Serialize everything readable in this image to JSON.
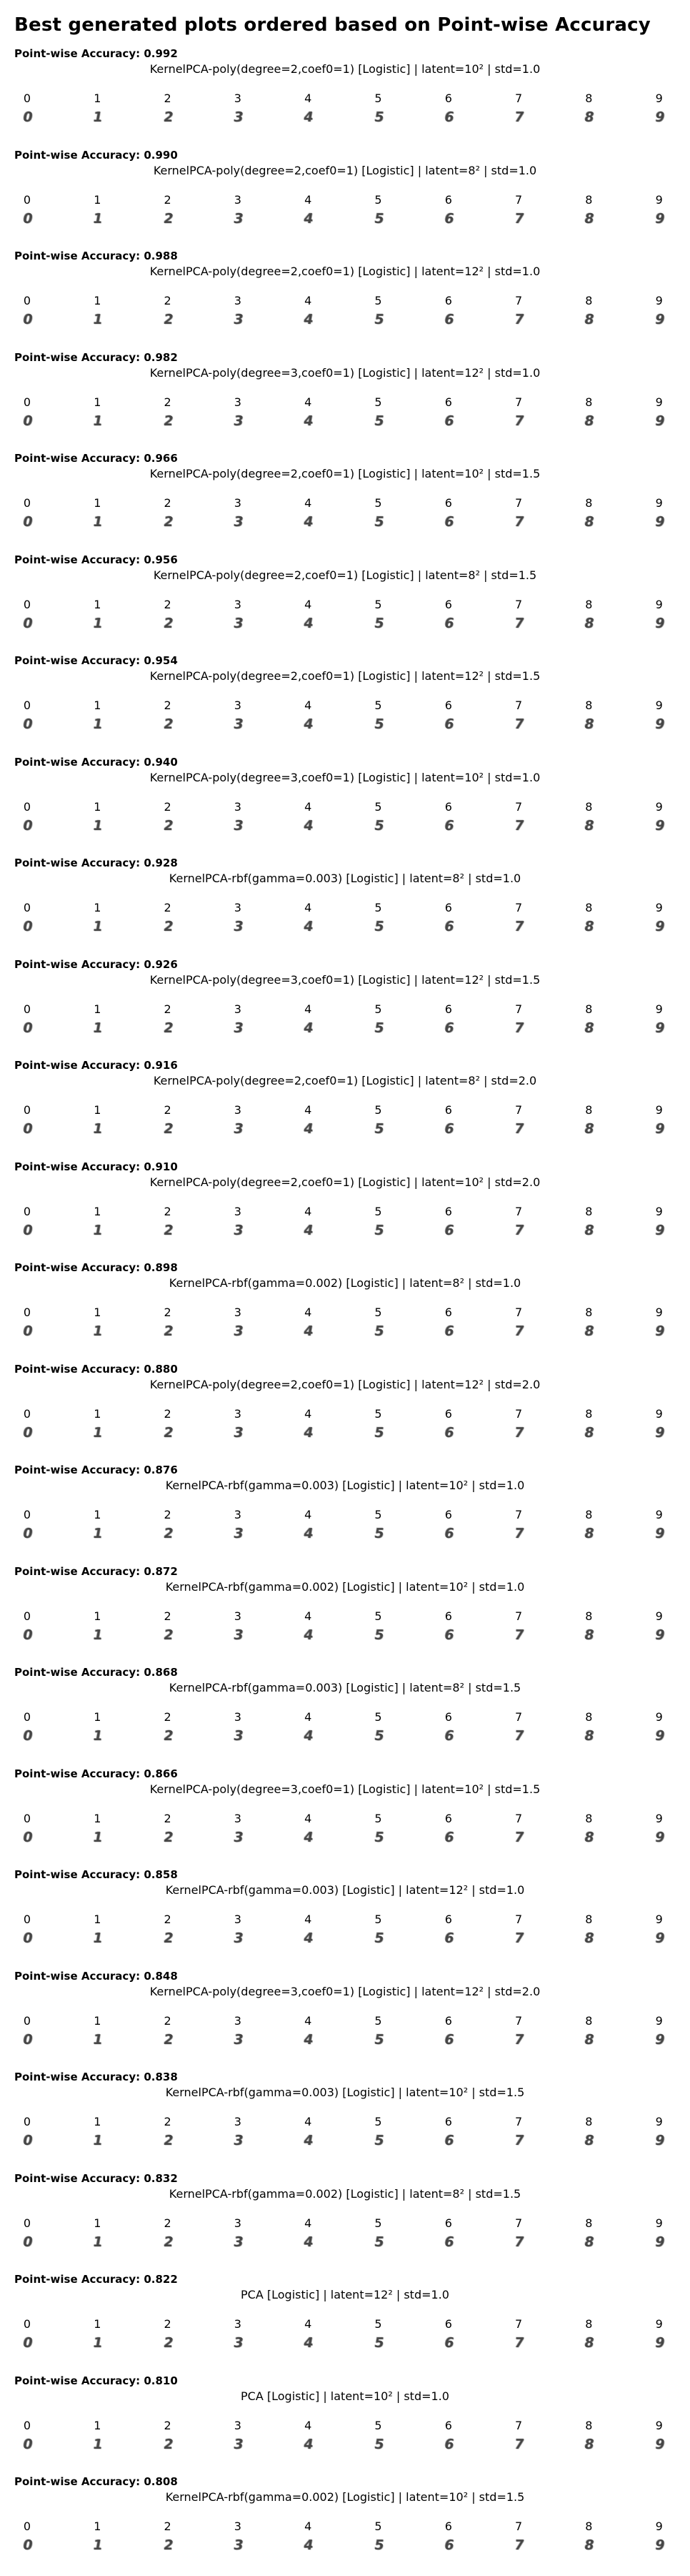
{
  "title": "Best generated plots ordered based on Point-wise Accuracy",
  "metric_label": "Point-wise Accuracy",
  "chart_data": {
    "type": "image_grid",
    "title": "Best generated plots ordered based on Point-wise Accuracy",
    "column_labels": [
      "0",
      "1",
      "2",
      "3",
      "4",
      "5",
      "6",
      "7",
      "8",
      "9"
    ],
    "panels": [
      {
        "accuracy": "0.992",
        "config": "KernelPCA-poly(degree=2,coef0=1) [Logistic] | latent=10² | std=1.0"
      },
      {
        "accuracy": "0.990",
        "config": "KernelPCA-poly(degree=2,coef0=1) [Logistic] | latent=8² | std=1.0"
      },
      {
        "accuracy": "0.988",
        "config": "KernelPCA-poly(degree=2,coef0=1) [Logistic] | latent=12² | std=1.0"
      },
      {
        "accuracy": "0.982",
        "config": "KernelPCA-poly(degree=3,coef0=1) [Logistic] | latent=12² | std=1.0"
      },
      {
        "accuracy": "0.966",
        "config": "KernelPCA-poly(degree=2,coef0=1) [Logistic] | latent=10² | std=1.5"
      },
      {
        "accuracy": "0.956",
        "config": "KernelPCA-poly(degree=2,coef0=1) [Logistic] | latent=8² | std=1.5"
      },
      {
        "accuracy": "0.954",
        "config": "KernelPCA-poly(degree=2,coef0=1) [Logistic] | latent=12² | std=1.5"
      },
      {
        "accuracy": "0.940",
        "config": "KernelPCA-poly(degree=3,coef0=1) [Logistic] | latent=10² | std=1.0"
      },
      {
        "accuracy": "0.928",
        "config": "KernelPCA-rbf(gamma=0.003) [Logistic] | latent=8² | std=1.0"
      },
      {
        "accuracy": "0.926",
        "config": "KernelPCA-poly(degree=3,coef0=1) [Logistic] | latent=12² | std=1.5"
      },
      {
        "accuracy": "0.916",
        "config": "KernelPCA-poly(degree=2,coef0=1) [Logistic] | latent=8² | std=2.0"
      },
      {
        "accuracy": "0.910",
        "config": "KernelPCA-poly(degree=2,coef0=1) [Logistic] | latent=10² | std=2.0"
      },
      {
        "accuracy": "0.898",
        "config": "KernelPCA-rbf(gamma=0.002) [Logistic] | latent=8² | std=1.0"
      },
      {
        "accuracy": "0.880",
        "config": "KernelPCA-poly(degree=2,coef0=1) [Logistic] | latent=12² | std=2.0"
      },
      {
        "accuracy": "0.876",
        "config": "KernelPCA-rbf(gamma=0.003) [Logistic] | latent=10² | std=1.0"
      },
      {
        "accuracy": "0.872",
        "config": "KernelPCA-rbf(gamma=0.002) [Logistic] | latent=10² | std=1.0"
      },
      {
        "accuracy": "0.868",
        "config": "KernelPCA-rbf(gamma=0.003) [Logistic] | latent=8² | std=1.5"
      },
      {
        "accuracy": "0.866",
        "config": "KernelPCA-poly(degree=3,coef0=1) [Logistic] | latent=10² | std=1.5"
      },
      {
        "accuracy": "0.858",
        "config": "KernelPCA-rbf(gamma=0.003) [Logistic] | latent=12² | std=1.0"
      },
      {
        "accuracy": "0.848",
        "config": "KernelPCA-poly(degree=3,coef0=1) [Logistic] | latent=12² | std=2.0"
      },
      {
        "accuracy": "0.838",
        "config": "KernelPCA-rbf(gamma=0.003) [Logistic] | latent=10² | std=1.5"
      },
      {
        "accuracy": "0.832",
        "config": "KernelPCA-rbf(gamma=0.002) [Logistic] | latent=8² | std=1.5"
      },
      {
        "accuracy": "0.822",
        "config": "PCA [Logistic] | latent=12² | std=1.0"
      },
      {
        "accuracy": "0.810",
        "config": "PCA [Logistic] | latent=10² | std=1.0"
      },
      {
        "accuracy": "0.808",
        "config": "KernelPCA-rbf(gamma=0.002) [Logistic] | latent=10² | std=1.5"
      }
    ]
  }
}
